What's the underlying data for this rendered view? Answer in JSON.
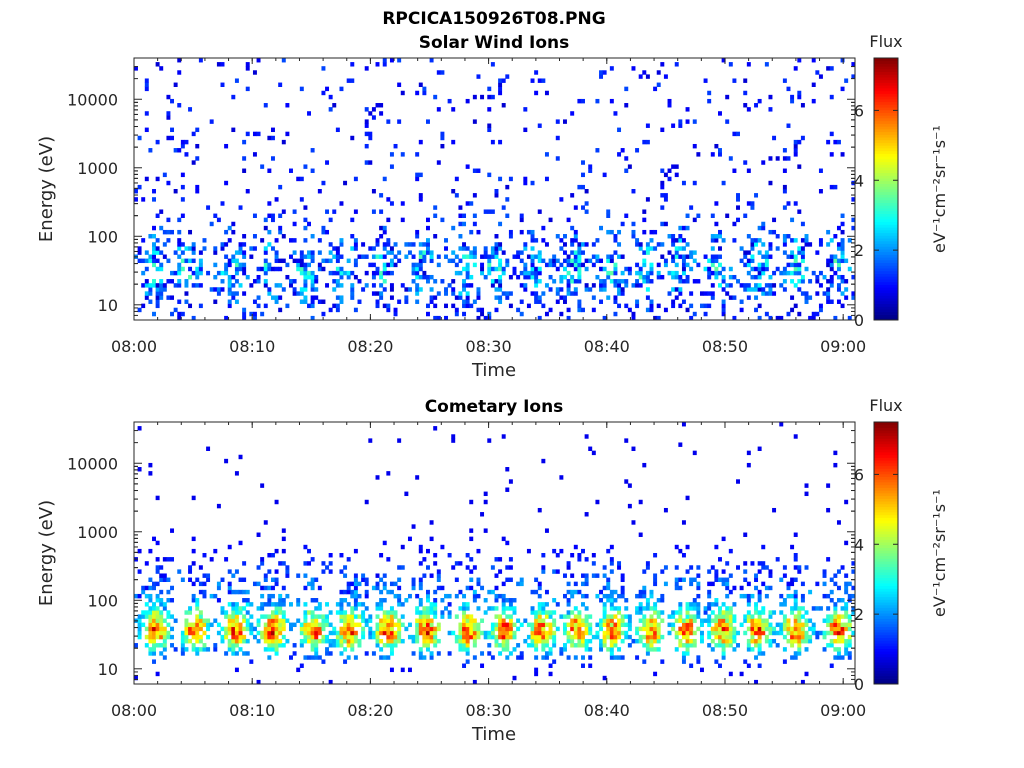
{
  "figure_title": "RPCICA150926T08.PNG",
  "chart_data": [
    {
      "type": "heatmap",
      "title": "Solar Wind Ions",
      "xlabel": "Time",
      "ylabel": "Energy (eV)",
      "y_scale": "log",
      "ylim": [
        6,
        40000
      ],
      "xlim": [
        "08:00",
        "09:01"
      ],
      "x_ticks": [
        "08:00",
        "08:10",
        "08:20",
        "08:30",
        "08:40",
        "08:50",
        "09:00"
      ],
      "y_ticks": [
        "10",
        "100",
        "1000",
        "10000"
      ],
      "y_tick_values": [
        10,
        100,
        1000,
        10000
      ],
      "colorbar": {
        "title": "Flux",
        "label": "eV⁻¹cm⁻²sr⁻¹s⁻¹",
        "range": [
          0,
          7.5
        ],
        "ticks": [
          "0",
          "2",
          "4",
          "6"
        ],
        "tick_values": [
          0,
          2,
          4,
          6
        ],
        "colormap": "jet"
      },
      "bursts_minutes": [
        1.5,
        4.5,
        8.3,
        11.5,
        14.5,
        17.8,
        21.0,
        24.3,
        28.0,
        30.5,
        33.8,
        37.0,
        40.3,
        43.2,
        46.3,
        49.2,
        52.8,
        56.0,
        59.5
      ]
    },
    {
      "type": "heatmap",
      "title": "Cometary Ions",
      "xlabel": "Time",
      "ylabel": "Energy (eV)",
      "y_scale": "log",
      "ylim": [
        6,
        40000
      ],
      "xlim": [
        "08:00",
        "09:01"
      ],
      "x_ticks": [
        "08:00",
        "08:10",
        "08:20",
        "08:30",
        "08:40",
        "08:50",
        "09:00"
      ],
      "y_ticks": [
        "10",
        "100",
        "1000",
        "10000"
      ],
      "y_tick_values": [
        10,
        100,
        1000,
        10000
      ],
      "colorbar": {
        "title": "Flux",
        "label": "eV⁻¹cm⁻²sr⁻¹s⁻¹",
        "range": [
          0,
          7.5
        ],
        "ticks": [
          "0",
          "2",
          "4",
          "6"
        ],
        "tick_values": [
          0,
          2,
          4,
          6
        ],
        "colormap": "jet"
      },
      "bursts_minutes": [
        1.8,
        5.2,
        8.6,
        11.8,
        15.2,
        18.2,
        21.5,
        24.8,
        28.3,
        31.3,
        34.5,
        37.5,
        40.5,
        43.8,
        46.7,
        49.8,
        52.8,
        56.0,
        59.6
      ]
    }
  ]
}
